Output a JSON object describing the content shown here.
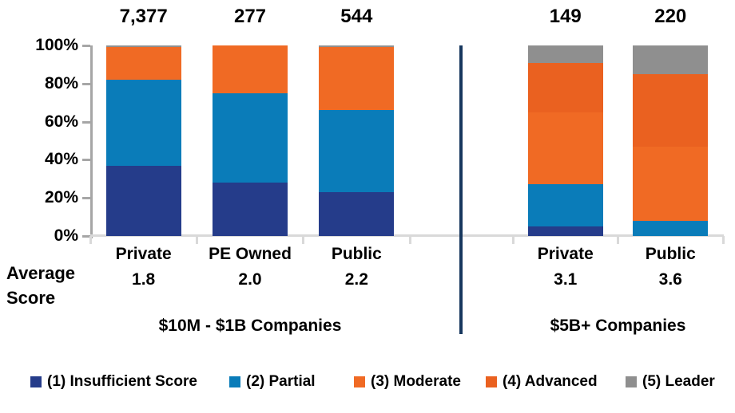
{
  "colors": {
    "insufficient": "#253C8A",
    "partial": "#0A7CB9",
    "moderate": "#F06A24",
    "advanced": "#EA6120",
    "leader": "#8F8F8F",
    "divider": "#17375E",
    "axis": "#A6A6A6",
    "baseline": "#D9D9D9",
    "text": "#000000"
  },
  "average_score_label": {
    "line1": "Average",
    "line2": "Score"
  },
  "chart_data": {
    "type": "bar",
    "stacked": true,
    "orientation": "vertical",
    "units": "percent",
    "ylim": [
      0,
      100
    ],
    "grid": false,
    "legend_position": "bottom",
    "y_ticks": [
      {
        "value": 0,
        "label": "0%"
      },
      {
        "value": 20,
        "label": "20%"
      },
      {
        "value": 40,
        "label": "40%"
      },
      {
        "value": 60,
        "label": "60%"
      },
      {
        "value": 80,
        "label": "80%"
      },
      {
        "value": 100,
        "label": "100%"
      }
    ],
    "legend": [
      {
        "key": "insufficient",
        "label": "(1) Insufficient Score"
      },
      {
        "key": "partial",
        "label": "(2) Partial"
      },
      {
        "key": "moderate",
        "label": "(3) Moderate"
      },
      {
        "key": "advanced",
        "label": "(4) Advanced"
      },
      {
        "key": "leader",
        "label": "(5) Leader"
      }
    ],
    "groups": [
      {
        "label": "$10M - $1B Companies",
        "bars": [
          {
            "category": "Private",
            "count": "7,377",
            "avg_score": "1.8",
            "values": {
              "insufficient": 37,
              "partial": 45,
              "moderate": 17,
              "advanced": 0,
              "leader": 1
            }
          },
          {
            "category": "PE Owned",
            "count": "277",
            "avg_score": "2.0",
            "values": {
              "insufficient": 28,
              "partial": 47,
              "moderate": 25,
              "advanced": 0,
              "leader": 0
            }
          },
          {
            "category": "Public",
            "count": "544",
            "avg_score": "2.2",
            "values": {
              "insufficient": 23,
              "partial": 43,
              "moderate": 33,
              "advanced": 0,
              "leader": 1
            }
          }
        ]
      },
      {
        "label": "$5B+ Companies",
        "bars": [
          {
            "category": "Private",
            "count": "149",
            "avg_score": "3.1",
            "values": {
              "insufficient": 5,
              "partial": 22,
              "moderate": 38,
              "advanced": 26,
              "leader": 9
            }
          },
          {
            "category": "Public",
            "count": "220",
            "avg_score": "3.6",
            "values": {
              "insufficient": 0,
              "partial": 8,
              "moderate": 39,
              "advanced": 38,
              "leader": 15
            }
          }
        ]
      }
    ]
  }
}
